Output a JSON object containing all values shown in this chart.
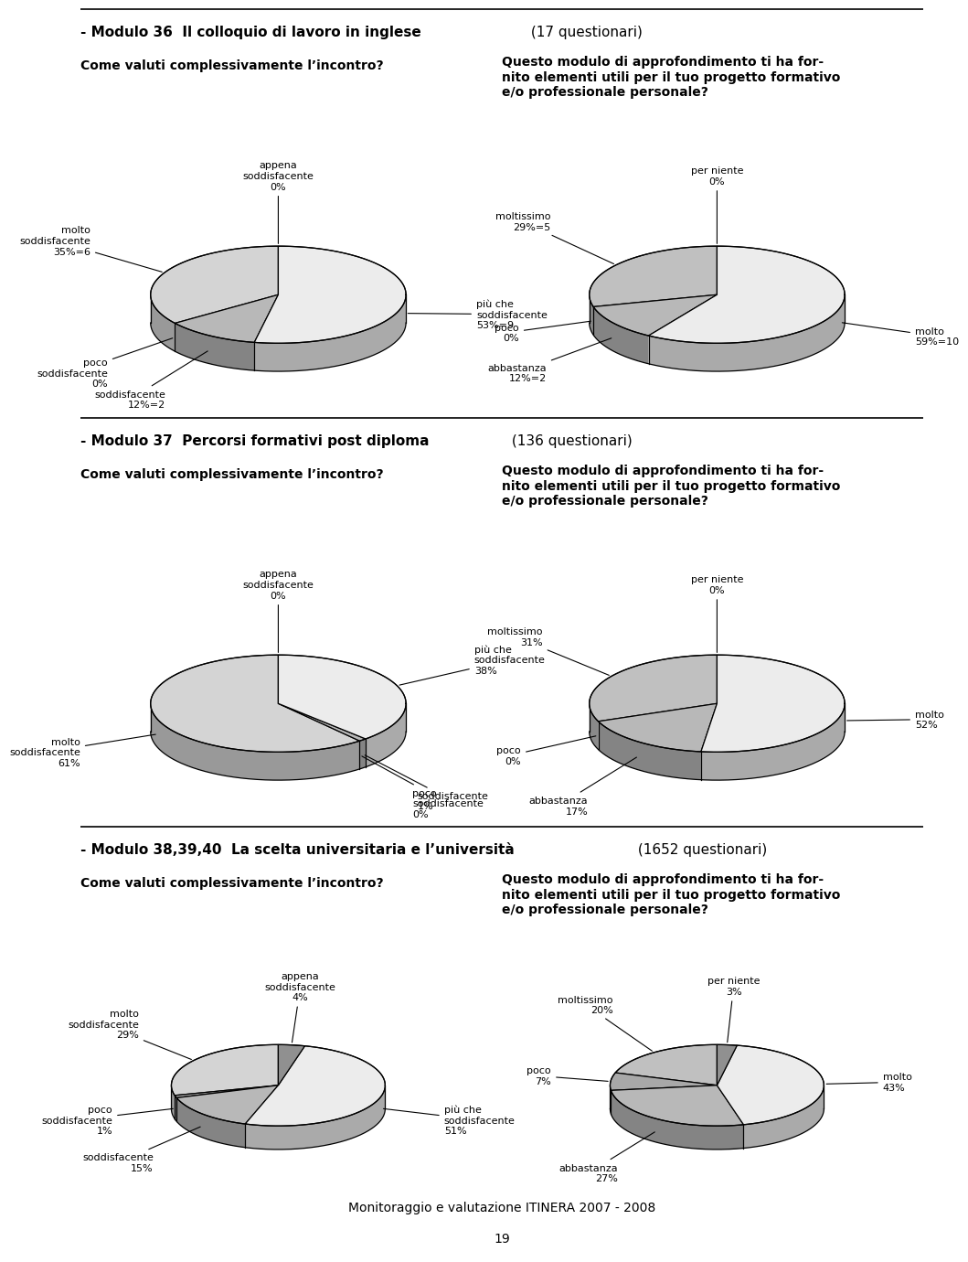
{
  "sections": [
    {
      "title_bold": "- Modulo 36  Il colloquio di lavoro in inglese",
      "title_normal": " (17 questionari)",
      "pie1": {
        "values": [
          35,
          0,
          12,
          53,
          0
        ],
        "colors": [
          "#d4d4d4",
          "#d4d4d4",
          "#b8b8b8",
          "#ececec",
          "#d4d4d4"
        ],
        "labels": [
          "molto\nsoddisfacente\n35%=6",
          "poco\nsoddisfacente\n0%",
          "soddisfacente\n12%=2",
          "più che\nsoddisfacente\n53%=9",
          "appena\nsoddisfacente\n0%"
        ],
        "label_bold_line": [
          2,
          2,
          2,
          2,
          2
        ],
        "startangle": 90
      },
      "pie2": {
        "values": [
          29,
          0,
          12,
          59,
          0
        ],
        "colors": [
          "#c0c0c0",
          "#c0c0c0",
          "#b8b8b8",
          "#ececec",
          "#c0c0c0"
        ],
        "labels": [
          "moltissimo\n29%=5",
          "poco\n0%",
          "abbastanza\n12%=2",
          "molto\n59%=10",
          "per niente\n0%"
        ],
        "startangle": 90
      }
    },
    {
      "title_bold": "- Modulo 37  Percorsi formativi post diploma",
      "title_normal": " (136 questionari)",
      "pie1": {
        "values": [
          61,
          0,
          1,
          38,
          0
        ],
        "colors": [
          "#d4d4d4",
          "#d4d4d4",
          "#b8b8b8",
          "#ececec",
          "#d4d4d4"
        ],
        "labels": [
          "molto\nsoddisfacente\n61%",
          "poco\nsoddisfacente\n0%",
          "soddisfacente\n1%",
          "più che\nsoddisfacente\n38%",
          "appena\nsoddisfacente\n0%"
        ],
        "startangle": 90
      },
      "pie2": {
        "values": [
          31,
          0,
          17,
          52,
          0
        ],
        "colors": [
          "#c0c0c0",
          "#c0c0c0",
          "#b8b8b8",
          "#ececec",
          "#c0c0c0"
        ],
        "labels": [
          "moltissimo\n31%",
          "poco\n0%",
          "abbastanza\n17%",
          "molto\n52%",
          "per niente\n0%"
        ],
        "startangle": 90
      }
    },
    {
      "title_bold": "- Modulo 38,39,40  La scelta universitaria e l’università",
      "title_normal": " (1652 questionari)",
      "pie1": {
        "values": [
          29,
          1,
          15,
          51,
          4
        ],
        "colors": [
          "#d4d4d4",
          "#a8a8a8",
          "#b8b8b8",
          "#ececec",
          "#909090"
        ],
        "labels": [
          "molto\nsoddisfacente\n29%",
          "poco\nsoddisfacente\n1%",
          "soddisfacente\n15%",
          "più che\nsoddisfacente\n51%",
          "appena\nsoddisfacente\n4%"
        ],
        "startangle": 90
      },
      "pie2": {
        "values": [
          20,
          7,
          27,
          43,
          3
        ],
        "colors": [
          "#c0c0c0",
          "#a8a8a8",
          "#b8b8b8",
          "#ececec",
          "#909090"
        ],
        "labels": [
          "moltissimo\n20%",
          "poco\n7%",
          "abbastanza\n27%",
          "molto\n43%",
          "per niente\n3%"
        ],
        "startangle": 90
      }
    }
  ],
  "q1_label": "Come valuti complessivamente l’incontro?",
  "q2_label": "Questo modulo di approfondimento ti ha for-\nnito elementi utili per il tuo progetto formativo\ne/o professionale personale?",
  "footer": "Monitoraggio e valutazione ITINERA 2007 - 2008",
  "page_num": "19",
  "bg_color": "#ffffff"
}
